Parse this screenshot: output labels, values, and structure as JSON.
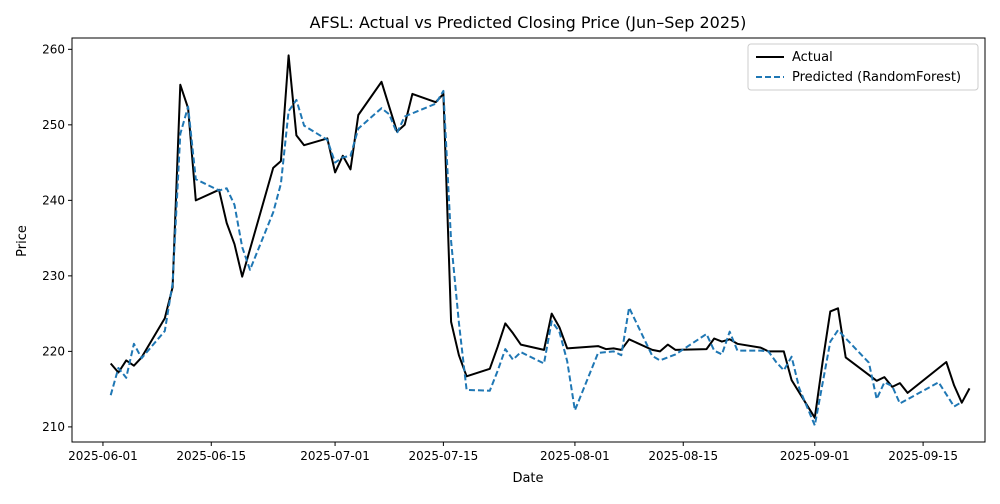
{
  "chart_data": {
    "type": "line",
    "title": "AFSL: Actual vs Predicted Closing Price (Jun–Sep 2025)",
    "xlabel": "Date",
    "ylabel": "Price",
    "x_ticks": [
      "2025-06-01",
      "2025-06-15",
      "2025-07-01",
      "2025-07-15",
      "2025-08-01",
      "2025-08-15",
      "2025-09-01",
      "2025-09-15"
    ],
    "y_ticks": [
      210,
      220,
      230,
      240,
      250,
      260
    ],
    "xlim": [
      "2025-05-28",
      "2025-09-23"
    ],
    "ylim": [
      208.0,
      261.5
    ],
    "legend_position": "top-right",
    "grid": false,
    "series": [
      {
        "name": "Actual",
        "color": "#000000",
        "dash": "solid",
        "points": [
          [
            "2025-06-02",
            218.4
          ],
          [
            "2025-06-03",
            217.2
          ],
          [
            "2025-06-04",
            218.8
          ],
          [
            "2025-06-05",
            218.1
          ],
          [
            "2025-06-06",
            219.2
          ],
          [
            "2025-06-09",
            224.4
          ],
          [
            "2025-06-10",
            228.5
          ],
          [
            "2025-06-11",
            255.3
          ],
          [
            "2025-06-12",
            252.2
          ],
          [
            "2025-06-13",
            240.0
          ],
          [
            "2025-06-16",
            241.4
          ],
          [
            "2025-06-17",
            237.0
          ],
          [
            "2025-06-18",
            234.2
          ],
          [
            "2025-06-19",
            229.9
          ],
          [
            "2025-06-23",
            244.3
          ],
          [
            "2025-06-24",
            245.2
          ],
          [
            "2025-06-25",
            259.2
          ],
          [
            "2025-06-26",
            248.6
          ],
          [
            "2025-06-27",
            247.3
          ],
          [
            "2025-06-30",
            248.2
          ],
          [
            "2025-07-01",
            243.7
          ],
          [
            "2025-07-02",
            245.9
          ],
          [
            "2025-07-03",
            244.1
          ],
          [
            "2025-07-04",
            251.3
          ],
          [
            "2025-07-07",
            255.7
          ],
          [
            "2025-07-08",
            252.4
          ],
          [
            "2025-07-09",
            249.1
          ],
          [
            "2025-07-10",
            250.0
          ],
          [
            "2025-07-11",
            254.1
          ],
          [
            "2025-07-14",
            253.0
          ],
          [
            "2025-07-15",
            254.1
          ],
          [
            "2025-07-16",
            223.9
          ],
          [
            "2025-07-17",
            219.5
          ],
          [
            "2025-07-18",
            216.7
          ],
          [
            "2025-07-21",
            217.7
          ],
          [
            "2025-07-22",
            220.6
          ],
          [
            "2025-07-23",
            223.7
          ],
          [
            "2025-07-24",
            222.4
          ],
          [
            "2025-07-25",
            220.9
          ],
          [
            "2025-07-28",
            220.2
          ],
          [
            "2025-07-29",
            225.0
          ],
          [
            "2025-07-30",
            223.2
          ],
          [
            "2025-07-31",
            220.4
          ],
          [
            "2025-08-04",
            220.7
          ],
          [
            "2025-08-05",
            220.3
          ],
          [
            "2025-08-06",
            220.4
          ],
          [
            "2025-08-07",
            220.2
          ],
          [
            "2025-08-08",
            221.6
          ],
          [
            "2025-08-11",
            220.2
          ],
          [
            "2025-08-12",
            220.0
          ],
          [
            "2025-08-13",
            220.9
          ],
          [
            "2025-08-14",
            220.2
          ],
          [
            "2025-08-18",
            220.3
          ],
          [
            "2025-08-19",
            221.7
          ],
          [
            "2025-08-20",
            221.3
          ],
          [
            "2025-08-21",
            221.6
          ],
          [
            "2025-08-22",
            221.0
          ],
          [
            "2025-08-25",
            220.5
          ],
          [
            "2025-08-26",
            220.0
          ],
          [
            "2025-08-28",
            220.0
          ],
          [
            "2025-08-29",
            216.2
          ],
          [
            "2025-09-01",
            211.2
          ],
          [
            "2025-09-02",
            218.5
          ],
          [
            "2025-09-03",
            225.3
          ],
          [
            "2025-09-04",
            225.7
          ],
          [
            "2025-09-05",
            219.2
          ],
          [
            "2025-09-09",
            216.1
          ],
          [
            "2025-09-10",
            216.6
          ],
          [
            "2025-09-11",
            215.3
          ],
          [
            "2025-09-12",
            215.8
          ],
          [
            "2025-09-13",
            214.5
          ],
          [
            "2025-09-18",
            218.6
          ],
          [
            "2025-09-19",
            215.5
          ],
          [
            "2025-09-20",
            213.2
          ],
          [
            "2025-09-21",
            215.1
          ]
        ]
      },
      {
        "name": "Predicted (RandomForest)",
        "color": "#1f77b4",
        "dash": "dashed",
        "points": [
          [
            "2025-06-02",
            214.2
          ],
          [
            "2025-06-03",
            217.8
          ],
          [
            "2025-06-04",
            216.5
          ],
          [
            "2025-06-05",
            221.0
          ],
          [
            "2025-06-06",
            219.1
          ],
          [
            "2025-06-09",
            222.7
          ],
          [
            "2025-06-10",
            229.0
          ],
          [
            "2025-06-11",
            248.8
          ],
          [
            "2025-06-12",
            252.4
          ],
          [
            "2025-06-13",
            242.8
          ],
          [
            "2025-06-16",
            241.3
          ],
          [
            "2025-06-17",
            241.6
          ],
          [
            "2025-06-18",
            239.4
          ],
          [
            "2025-06-19",
            233.8
          ],
          [
            "2025-06-20",
            230.8
          ],
          [
            "2025-06-23",
            238.4
          ],
          [
            "2025-06-24",
            242.2
          ],
          [
            "2025-06-25",
            251.8
          ],
          [
            "2025-06-26",
            253.3
          ],
          [
            "2025-06-27",
            249.9
          ],
          [
            "2025-06-30",
            248.0
          ],
          [
            "2025-07-01",
            245.0
          ],
          [
            "2025-07-02",
            245.7
          ],
          [
            "2025-07-03",
            245.9
          ],
          [
            "2025-07-04",
            249.5
          ],
          [
            "2025-07-07",
            252.2
          ],
          [
            "2025-07-08",
            251.4
          ],
          [
            "2025-07-09",
            248.9
          ],
          [
            "2025-07-10",
            251.1
          ],
          [
            "2025-07-14",
            252.8
          ],
          [
            "2025-07-15",
            254.5
          ],
          [
            "2025-07-16",
            234.6
          ],
          [
            "2025-07-17",
            223.8
          ],
          [
            "2025-07-18",
            214.9
          ],
          [
            "2025-07-21",
            214.8
          ],
          [
            "2025-07-22",
            217.4
          ],
          [
            "2025-07-23",
            220.3
          ],
          [
            "2025-07-24",
            218.9
          ],
          [
            "2025-07-25",
            219.9
          ],
          [
            "2025-07-28",
            218.4
          ],
          [
            "2025-07-29",
            224.0
          ],
          [
            "2025-07-30",
            222.6
          ],
          [
            "2025-07-31",
            218.7
          ],
          [
            "2025-08-01",
            212.2
          ],
          [
            "2025-08-04",
            219.8
          ],
          [
            "2025-08-05",
            219.9
          ],
          [
            "2025-08-06",
            220.0
          ],
          [
            "2025-08-07",
            219.5
          ],
          [
            "2025-08-08",
            225.8
          ],
          [
            "2025-08-11",
            219.4
          ],
          [
            "2025-08-12",
            218.8
          ],
          [
            "2025-08-13",
            219.2
          ],
          [
            "2025-08-14",
            219.6
          ],
          [
            "2025-08-18",
            222.3
          ],
          [
            "2025-08-19",
            220.1
          ],
          [
            "2025-08-20",
            219.6
          ],
          [
            "2025-08-21",
            222.6
          ],
          [
            "2025-08-22",
            220.1
          ],
          [
            "2025-08-25",
            220.1
          ],
          [
            "2025-08-26",
            220.0
          ],
          [
            "2025-08-27",
            218.6
          ],
          [
            "2025-08-28",
            217.5
          ],
          [
            "2025-08-29",
            219.3
          ],
          [
            "2025-08-30",
            215.1
          ],
          [
            "2025-09-01",
            210.2
          ],
          [
            "2025-09-03",
            221.3
          ],
          [
            "2025-09-04",
            222.8
          ],
          [
            "2025-09-08",
            218.5
          ],
          [
            "2025-09-09",
            213.7
          ],
          [
            "2025-09-10",
            215.9
          ],
          [
            "2025-09-11",
            215.4
          ],
          [
            "2025-09-12",
            213.1
          ],
          [
            "2025-09-17",
            215.9
          ],
          [
            "2025-09-19",
            212.7
          ],
          [
            "2025-09-20",
            213.3
          ]
        ]
      }
    ]
  }
}
